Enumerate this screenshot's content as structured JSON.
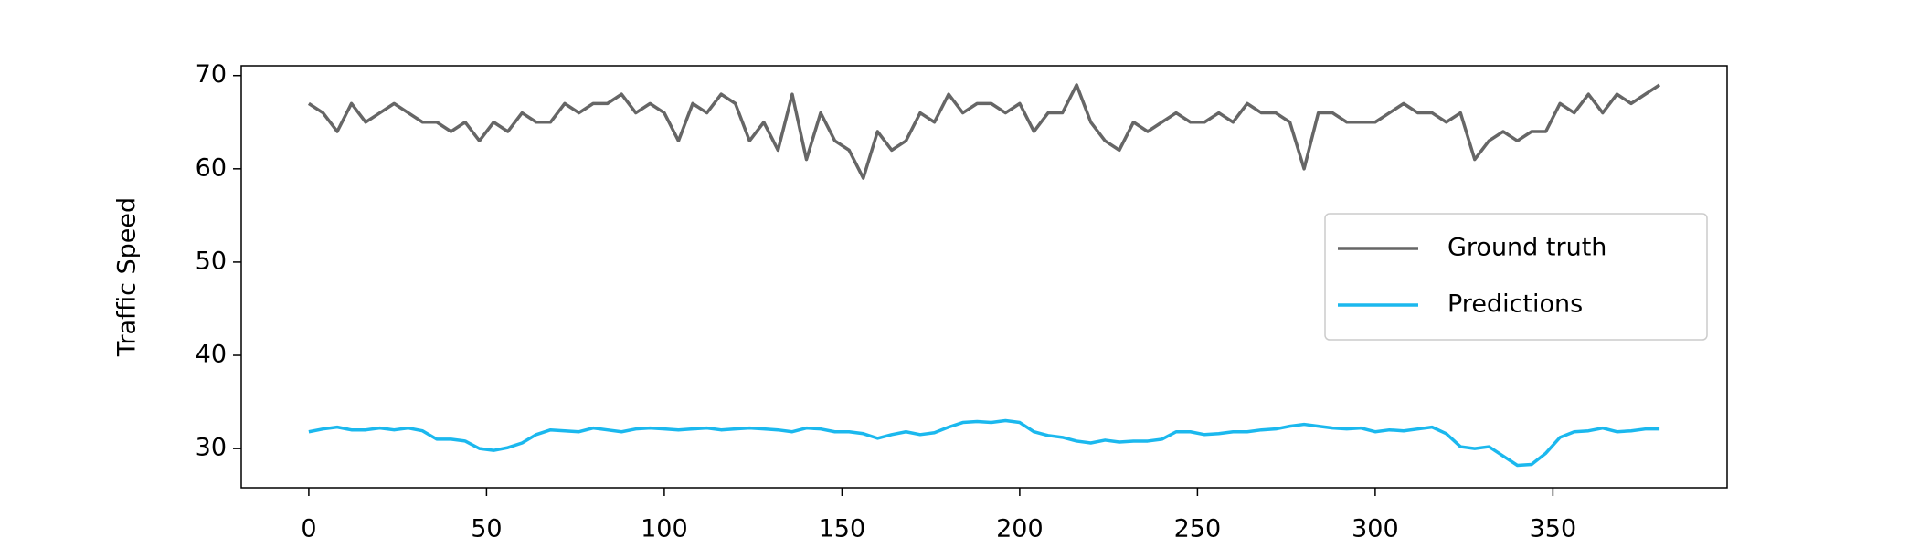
{
  "chart_data": {
    "type": "line",
    "ylabel": "Traffic Speed",
    "x": [
      0,
      4,
      8,
      12,
      16,
      20,
      24,
      28,
      32,
      36,
      40,
      44,
      48,
      52,
      56,
      60,
      64,
      68,
      72,
      76,
      80,
      84,
      88,
      92,
      96,
      100,
      104,
      108,
      112,
      116,
      120,
      124,
      128,
      132,
      136,
      140,
      144,
      148,
      152,
      156,
      160,
      164,
      168,
      172,
      176,
      180,
      184,
      188,
      192,
      196,
      200,
      204,
      208,
      212,
      216,
      220,
      224,
      228,
      232,
      236,
      240,
      244,
      248,
      252,
      256,
      260,
      264,
      268,
      272,
      276,
      280,
      284,
      288,
      292,
      296,
      300,
      304,
      308,
      312,
      316,
      320,
      324,
      328,
      332,
      336,
      340,
      344,
      348,
      352,
      356,
      360,
      364,
      368,
      372,
      376,
      380
    ],
    "series": [
      {
        "name": "Ground truth",
        "color": "#666666",
        "values": [
          67,
          66,
          64,
          67,
          65,
          66,
          67,
          66,
          65,
          65,
          64,
          65,
          63,
          65,
          64,
          66,
          65,
          65,
          67,
          66,
          67,
          67,
          68,
          66,
          67,
          66,
          63,
          67,
          66,
          68,
          67,
          63,
          65,
          62,
          68,
          61,
          66,
          63,
          62,
          59,
          64,
          62,
          63,
          66,
          65,
          68,
          66,
          67,
          67,
          66,
          67,
          64,
          66,
          66,
          69,
          65,
          63,
          62,
          65,
          64,
          65,
          66,
          65,
          65,
          66,
          65,
          67,
          66,
          66,
          65,
          60,
          66,
          66,
          65,
          65,
          65,
          66,
          67,
          66,
          66,
          65,
          66,
          61,
          63,
          64,
          63,
          64,
          64,
          67,
          66,
          68,
          66,
          68,
          67,
          68,
          69
        ]
      },
      {
        "name": "Predictions",
        "color": "#1bb8ee",
        "values": [
          31.8,
          32.1,
          32.3,
          32.0,
          32.0,
          32.2,
          32.0,
          32.2,
          31.9,
          31.0,
          31.0,
          30.8,
          30.0,
          29.8,
          30.1,
          30.6,
          31.5,
          32.0,
          31.9,
          31.8,
          32.2,
          32.0,
          31.8,
          32.1,
          32.2,
          32.1,
          32.0,
          32.1,
          32.2,
          32.0,
          32.1,
          32.2,
          32.1,
          32.0,
          31.8,
          32.2,
          32.1,
          31.8,
          31.8,
          31.6,
          31.1,
          31.5,
          31.8,
          31.5,
          31.7,
          32.3,
          32.8,
          32.9,
          32.8,
          33.0,
          32.8,
          31.8,
          31.4,
          31.2,
          30.8,
          30.6,
          30.9,
          30.7,
          30.8,
          30.8,
          31.0,
          31.8,
          31.8,
          31.5,
          31.6,
          31.8,
          31.8,
          32.0,
          32.1,
          32.4,
          32.6,
          32.4,
          32.2,
          32.1,
          32.2,
          31.8,
          32.0,
          31.9,
          32.1,
          32.3,
          31.6,
          30.2,
          30.0,
          30.2,
          29.2,
          28.2,
          28.3,
          29.5,
          31.2,
          31.8,
          31.9,
          32.2,
          31.8,
          31.9,
          32.1,
          32.1
        ]
      }
    ],
    "xlim": [
      -19,
      399
    ],
    "ylim": [
      25.8,
      71.05
    ],
    "xticks": [
      0,
      50,
      100,
      150,
      200,
      250,
      300,
      350
    ],
    "yticks": [
      30,
      40,
      50,
      60,
      70
    ],
    "legend": "center right"
  }
}
